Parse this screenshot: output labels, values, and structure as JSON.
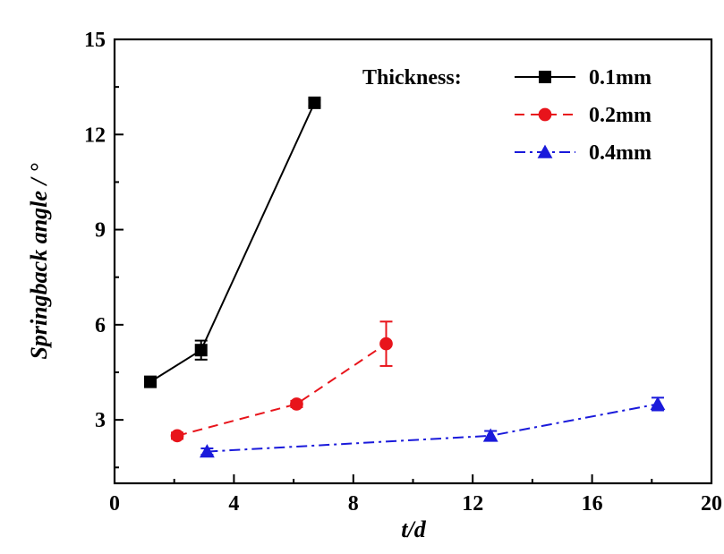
{
  "chart_data": {
    "type": "line",
    "xlabel": "t/d",
    "ylabel": "Springback angle / °",
    "xlim": [
      0,
      20
    ],
    "ylim": [
      1,
      15
    ],
    "xticks": [
      "0",
      "4",
      "8",
      "12",
      "16",
      "20"
    ],
    "yticks": [
      "3",
      "6",
      "9",
      "12",
      "15"
    ],
    "grid": false,
    "legend": {
      "title": "Thickness:",
      "placement": "top-right"
    },
    "series": [
      {
        "name": "0.1mm",
        "color": "#000000",
        "marker": "square",
        "line_style": "solid",
        "x": [
          1.2,
          2.9,
          6.7
        ],
        "y": [
          4.2,
          5.2,
          13.0
        ],
        "error": [
          0.1,
          0.3,
          0.1
        ]
      },
      {
        "name": "0.2mm",
        "color": "#e8141b",
        "marker": "circle",
        "line_style": "dashed",
        "x": [
          2.1,
          6.1,
          9.1
        ],
        "y": [
          2.5,
          3.5,
          5.4
        ],
        "error": [
          0.1,
          0.1,
          0.7
        ]
      },
      {
        "name": "0.4mm",
        "color": "#1a1adb",
        "marker": "triangle",
        "line_style": "dash-dot",
        "x": [
          3.1,
          12.6,
          18.2
        ],
        "y": [
          2.0,
          2.5,
          3.5
        ],
        "error": [
          0.1,
          0.15,
          0.2
        ]
      }
    ]
  }
}
